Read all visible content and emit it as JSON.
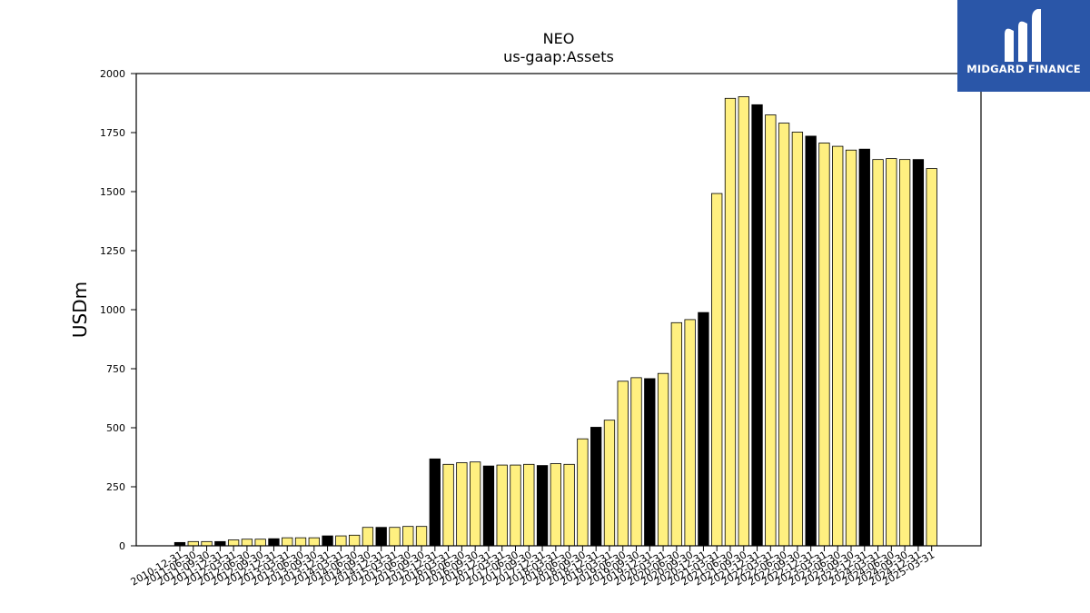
{
  "brand": {
    "name": "MIDGARD FINANCE",
    "logo_icon": "midgard-m-logo-icon",
    "background_color": "#2a56a8"
  },
  "chart_data": {
    "type": "bar",
    "title": "NEO",
    "subtitle": "us-gaap:Assets",
    "xlabel": "",
    "ylabel": "USDm",
    "ylim": [
      0,
      2000
    ],
    "yticks": [
      0,
      250,
      500,
      750,
      1000,
      1250,
      1500,
      1750,
      2000
    ],
    "grid": false,
    "colors": {
      "quarter": "#fff080",
      "year_end": "#000000",
      "edge": "#000000"
    },
    "categories": [
      "2010-12-31",
      "2011-06-30",
      "2011-09-30",
      "2011-12-31",
      "2012-03-31",
      "2012-06-30",
      "2012-09-30",
      "2012-12-31",
      "2013-03-31",
      "2013-06-30",
      "2013-09-30",
      "2013-12-31",
      "2014-03-31",
      "2014-06-30",
      "2014-09-30",
      "2014-12-31",
      "2015-03-31",
      "2015-06-30",
      "2015-09-30",
      "2015-12-31",
      "2016-03-31",
      "2016-06-30",
      "2016-09-30",
      "2016-12-31",
      "2017-03-31",
      "2017-06-30",
      "2017-09-30",
      "2017-12-31",
      "2018-03-31",
      "2018-06-30",
      "2018-09-30",
      "2018-12-31",
      "2019-03-31",
      "2019-06-30",
      "2019-09-30",
      "2019-12-31",
      "2020-03-31",
      "2020-06-30",
      "2020-09-30",
      "2020-12-31",
      "2021-03-31",
      "2021-06-30",
      "2021-09-30",
      "2021-12-31",
      "2022-03-31",
      "2022-06-30",
      "2022-09-30",
      "2022-12-31",
      "2023-03-31",
      "2023-06-30",
      "2023-09-30",
      "2023-12-31",
      "2024-03-31",
      "2024-06-30",
      "2024-09-30",
      "2024-12-31",
      "2025-03-31"
    ],
    "values": [
      14,
      18,
      18,
      18,
      25,
      28,
      28,
      30,
      34,
      34,
      34,
      42,
      42,
      45,
      78,
      78,
      78,
      82,
      82,
      368,
      345,
      352,
      355,
      338,
      342,
      342,
      345,
      340,
      348,
      345,
      453,
      502,
      532,
      697,
      712,
      708,
      730,
      945,
      958,
      988,
      1492,
      1895,
      1902,
      1868,
      1825,
      1790,
      1752,
      1735,
      1706,
      1692,
      1676,
      1680,
      1636,
      1640,
      1636,
      1636,
      1598
    ],
    "year_end": [
      true,
      false,
      false,
      true,
      false,
      false,
      false,
      true,
      false,
      false,
      false,
      true,
      false,
      false,
      false,
      true,
      false,
      false,
      false,
      true,
      false,
      false,
      false,
      true,
      false,
      false,
      false,
      true,
      false,
      false,
      false,
      true,
      false,
      false,
      false,
      true,
      false,
      false,
      false,
      true,
      false,
      false,
      false,
      true,
      false,
      false,
      false,
      true,
      false,
      false,
      false,
      true,
      false,
      false,
      false,
      true,
      false
    ]
  }
}
